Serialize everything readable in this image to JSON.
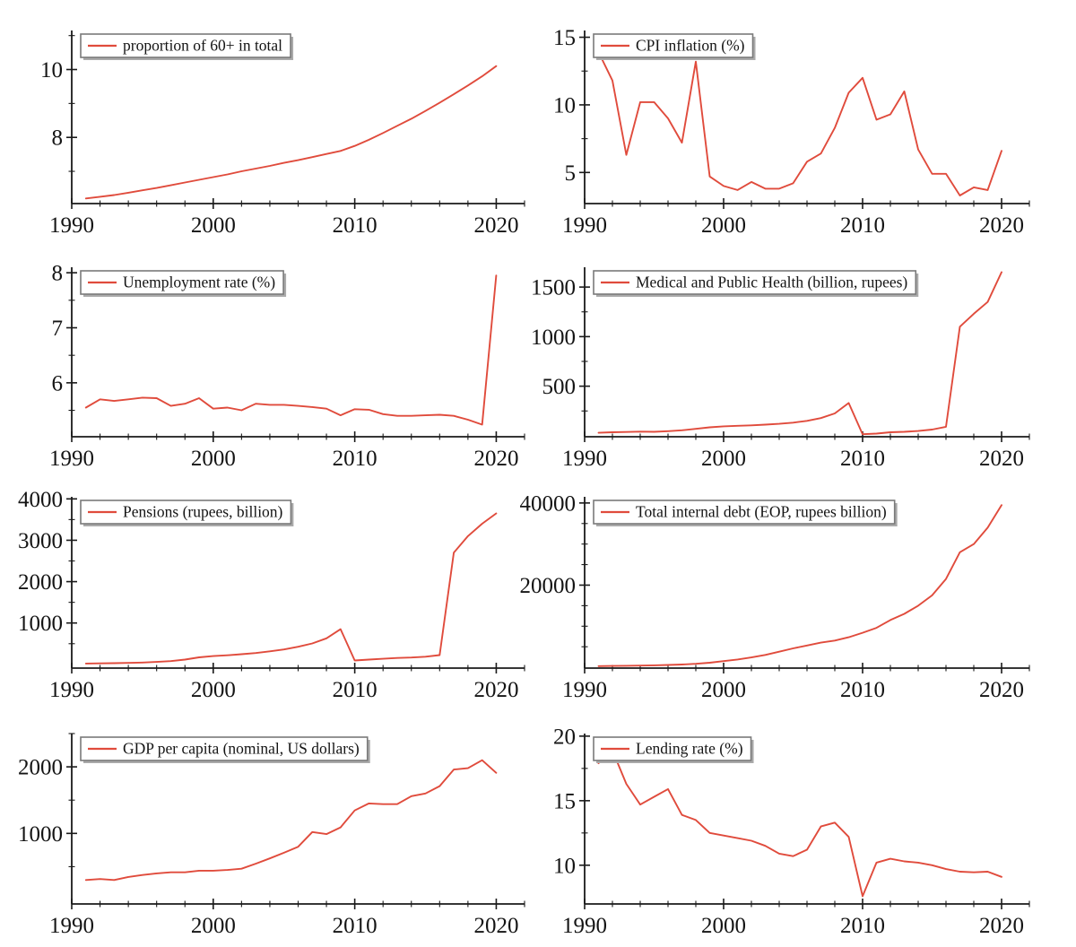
{
  "style": {
    "line_color": "#e04b3c",
    "axis_color": "#1a1a1a",
    "legend_border": "#7a7a7a",
    "legend_shadow": "#aaaaaa",
    "legend_background": "#ffffff",
    "background": "#ffffff",
    "legend_position": "upper-left",
    "grid": "off"
  },
  "years": [
    1991,
    1992,
    1993,
    1994,
    1995,
    1996,
    1997,
    1998,
    1999,
    2000,
    2001,
    2002,
    2003,
    2004,
    2005,
    2006,
    2007,
    2008,
    2009,
    2010,
    2011,
    2012,
    2013,
    2014,
    2015,
    2016,
    2017,
    2018,
    2019,
    2020
  ],
  "x_axis": {
    "xlim": [
      1990,
      2022
    ],
    "xticks": [
      1990,
      2000,
      2010,
      2020
    ],
    "xtick_labels": [
      "1990",
      "2000",
      "2010",
      "2020"
    ],
    "xticks_minor": [
      1992,
      1994,
      1996,
      1998,
      2002,
      2004,
      2006,
      2008,
      2012,
      2014,
      2016,
      2018,
      2022
    ]
  },
  "chart_data": [
    {
      "type": "line",
      "legend": "proportion of 60+ in total",
      "ylim": [
        6.05,
        11.15
      ],
      "yticks": [
        8,
        10
      ],
      "ytick_labels": [
        "8",
        "10"
      ],
      "yticks_minor": [
        7,
        9,
        11
      ],
      "values": [
        6.2,
        6.25,
        6.3,
        6.37,
        6.44,
        6.51,
        6.59,
        6.67,
        6.75,
        6.83,
        6.91,
        7.0,
        7.08,
        7.16,
        7.25,
        7.33,
        7.42,
        7.51,
        7.6,
        7.75,
        7.93,
        8.13,
        8.34,
        8.55,
        8.78,
        9.02,
        9.27,
        9.53,
        9.8,
        10.1
      ]
    },
    {
      "type": "line",
      "legend": "CPI inflation (%)",
      "ylim": [
        2.7,
        15.5
      ],
      "yticks": [
        5,
        10,
        15
      ],
      "ytick_labels": [
        "5",
        "10",
        "15"
      ],
      "yticks_minor": [
        7.5,
        12.5
      ],
      "values": [
        13.9,
        11.8,
        6.3,
        10.2,
        10.2,
        9.0,
        7.2,
        13.2,
        4.7,
        4.0,
        3.7,
        4.3,
        3.8,
        3.8,
        4.2,
        5.8,
        6.4,
        8.3,
        10.9,
        12.0,
        8.9,
        9.3,
        11.0,
        6.7,
        4.9,
        4.9,
        3.3,
        3.9,
        3.7,
        6.6
      ]
    },
    {
      "type": "line",
      "legend": "Unemployment rate (%)",
      "ylim": [
        5.02,
        8.1
      ],
      "yticks": [
        6,
        7,
        8
      ],
      "ytick_labels": [
        "6",
        "7",
        "8"
      ],
      "yticks_minor": [
        5.5,
        6.5,
        7.5
      ],
      "values": [
        5.55,
        5.7,
        5.67,
        5.7,
        5.73,
        5.72,
        5.58,
        5.62,
        5.72,
        5.53,
        5.55,
        5.5,
        5.62,
        5.6,
        5.6,
        5.58,
        5.56,
        5.53,
        5.41,
        5.52,
        5.51,
        5.43,
        5.4,
        5.4,
        5.41,
        5.42,
        5.4,
        5.33,
        5.24,
        7.95
      ]
    },
    {
      "type": "line",
      "legend": "Medical and Public Health (billion, rupees)",
      "ylim": [
        -10,
        1700
      ],
      "yticks": [
        500,
        1000,
        1500
      ],
      "ytick_labels": [
        "500",
        "1000",
        "1500"
      ],
      "yticks_minor": [
        250,
        750,
        1250
      ],
      "values": [
        30,
        35,
        38,
        42,
        40,
        46,
        55,
        70,
        85,
        95,
        100,
        105,
        112,
        120,
        132,
        150,
        178,
        225,
        330,
        15,
        22,
        35,
        40,
        48,
        62,
        90,
        1100,
        1230,
        1350,
        1650
      ]
    },
    {
      "type": "line",
      "legend": "Pensions (rupees, billion)",
      "ylim": [
        -90,
        4050
      ],
      "yticks": [
        1000,
        2000,
        3000,
        4000
      ],
      "ytick_labels": [
        "1000",
        "2000",
        "3000",
        "4000"
      ],
      "yticks_minor": [
        500,
        1500,
        2500,
        3500
      ],
      "values": [
        20,
        25,
        30,
        36,
        45,
        60,
        80,
        115,
        170,
        200,
        220,
        245,
        275,
        315,
        360,
        425,
        505,
        630,
        850,
        95,
        115,
        135,
        155,
        165,
        185,
        225,
        2700,
        3100,
        3400,
        3650
      ]
    },
    {
      "type": "line",
      "legend": "Total internal debt (EOP, rupees billion)",
      "ylim": [
        -200,
        41500
      ],
      "yticks": [
        20000,
        40000
      ],
      "ytick_labels": [
        "20000",
        "40000"
      ],
      "yticks_minor": [
        5000,
        10000,
        15000,
        25000,
        30000,
        35000
      ],
      "values": [
        290,
        320,
        360,
        410,
        470,
        560,
        680,
        850,
        1100,
        1500,
        1900,
        2400,
        3000,
        3800,
        4600,
        5300,
        6000,
        6500,
        7300,
        8400,
        9600,
        11500,
        13000,
        15000,
        17500,
        21500,
        28000,
        30000,
        34000,
        39500
      ]
    },
    {
      "type": "line",
      "legend": "GDP per capita (nominal, US dollars)",
      "ylim": [
        -60,
        2500
      ],
      "yticks": [
        1000,
        2000
      ],
      "ytick_labels": [
        "1000",
        "2000"
      ],
      "yticks_minor": [
        500,
        1500,
        2500
      ],
      "values": [
        300,
        315,
        300,
        345,
        375,
        400,
        415,
        415,
        440,
        440,
        450,
        470,
        545,
        625,
        710,
        800,
        1020,
        990,
        1090,
        1345,
        1450,
        1440,
        1440,
        1560,
        1600,
        1710,
        1960,
        1980,
        2100,
        1910
      ]
    },
    {
      "type": "line",
      "legend": "Lending rate (%)",
      "ylim": [
        7.0,
        20.2
      ],
      "yticks": [
        10,
        15,
        20
      ],
      "ytick_labels": [
        "10",
        "15",
        "20"
      ],
      "yticks_minor": [
        12.5,
        17.5
      ],
      "values": [
        17.9,
        18.9,
        16.3,
        14.7,
        15.3,
        15.9,
        13.9,
        13.5,
        12.5,
        12.3,
        12.1,
        11.9,
        11.5,
        10.9,
        10.7,
        11.2,
        13.0,
        13.3,
        12.2,
        7.6,
        10.2,
        10.5,
        10.3,
        10.2,
        10.0,
        9.7,
        9.5,
        9.45,
        9.5,
        9.1
      ]
    }
  ]
}
